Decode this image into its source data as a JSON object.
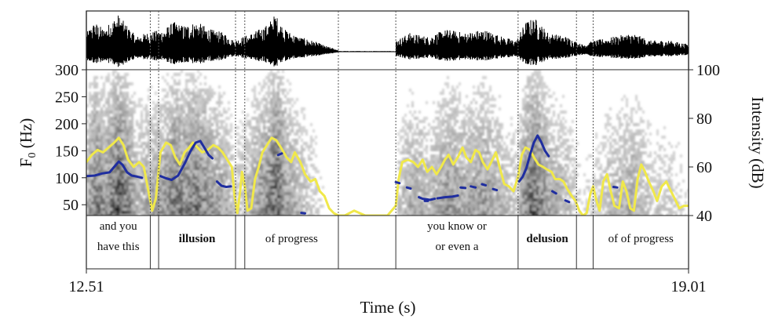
{
  "chart_data": {
    "type": "line",
    "xlabel": "Time (s)",
    "ylabel_left": "F0 (Hz)",
    "ylabel_right": "Intensity (dB)",
    "x_range": [
      12.51,
      19.01
    ],
    "x_ticks": [
      "12.51",
      "19.01"
    ],
    "y_left_range": [
      30,
      300
    ],
    "y_left_ticks": [
      "300",
      "250",
      "200",
      "150",
      "100",
      "50"
    ],
    "y_right_range": [
      40,
      100
    ],
    "y_right_ticks": [
      "100",
      "80",
      "60",
      "40"
    ],
    "segments": [
      {
        "text": [
          "and you",
          "have this"
        ],
        "bold": false,
        "start": 12.51,
        "end": 13.2
      },
      {
        "text": [
          "illusion"
        ],
        "bold": true,
        "start": 13.29,
        "end": 14.12
      },
      {
        "text": [
          "of progress"
        ],
        "bold": false,
        "start": 14.22,
        "end": 15.23
      },
      {
        "text": [
          "you know or",
          "or even a"
        ],
        "bold": false,
        "start": 15.85,
        "end": 17.17
      },
      {
        "text": [
          "delusion"
        ],
        "bold": true,
        "start": 17.17,
        "end": 17.8
      },
      {
        "text": [
          "of of progress"
        ],
        "bold": false,
        "start": 17.98,
        "end": 19.01
      }
    ],
    "boundaries": [
      13.2,
      13.29,
      14.12,
      14.22,
      15.23,
      15.85,
      17.17,
      17.8,
      17.98
    ],
    "series": [
      {
        "name": "Intensity",
        "axis": "right",
        "color": "#f0e84a",
        "points": [
          [
            12.51,
            62
          ],
          [
            12.57,
            65
          ],
          [
            12.63,
            67
          ],
          [
            12.69,
            66
          ],
          [
            12.75,
            68
          ],
          [
            12.81,
            70
          ],
          [
            12.86,
            72
          ],
          [
            12.91,
            69
          ],
          [
            12.96,
            63
          ],
          [
            13.02,
            60
          ],
          [
            13.08,
            62
          ],
          [
            13.13,
            60
          ],
          [
            13.18,
            50
          ],
          [
            13.22,
            42
          ],
          [
            13.26,
            47
          ],
          [
            13.31,
            66
          ],
          [
            13.37,
            70
          ],
          [
            13.42,
            69
          ],
          [
            13.47,
            64
          ],
          [
            13.52,
            61
          ],
          [
            13.57,
            66
          ],
          [
            13.62,
            68
          ],
          [
            13.66,
            70
          ],
          [
            13.71,
            68
          ],
          [
            13.76,
            66
          ],
          [
            13.82,
            67
          ],
          [
            13.88,
            69
          ],
          [
            13.93,
            68
          ],
          [
            13.98,
            66
          ],
          [
            14.03,
            63
          ],
          [
            14.08,
            60
          ],
          [
            14.11,
            48
          ],
          [
            14.14,
            41
          ],
          [
            14.17,
            50
          ],
          [
            14.19,
            58
          ],
          [
            14.22,
            52
          ],
          [
            14.25,
            42
          ],
          [
            14.29,
            43
          ],
          [
            14.33,
            55
          ],
          [
            14.37,
            60
          ],
          [
            14.41,
            66
          ],
          [
            14.46,
            69
          ],
          [
            14.51,
            72
          ],
          [
            14.56,
            71
          ],
          [
            14.61,
            68
          ],
          [
            14.67,
            64
          ],
          [
            14.72,
            62
          ],
          [
            14.76,
            66
          ],
          [
            14.82,
            62
          ],
          [
            14.87,
            57
          ],
          [
            14.93,
            54
          ],
          [
            14.98,
            55
          ],
          [
            15.03,
            50
          ],
          [
            15.08,
            48
          ],
          [
            15.13,
            43
          ],
          [
            15.18,
            41
          ],
          [
            15.23,
            40
          ],
          [
            15.3,
            40
          ],
          [
            15.4,
            42
          ],
          [
            15.52,
            40
          ],
          [
            15.64,
            40
          ],
          [
            15.76,
            40
          ],
          [
            15.85,
            44
          ],
          [
            15.88,
            55
          ],
          [
            15.92,
            62
          ],
          [
            15.98,
            63
          ],
          [
            16.04,
            62
          ],
          [
            16.09,
            60
          ],
          [
            16.14,
            63
          ],
          [
            16.19,
            58
          ],
          [
            16.24,
            60
          ],
          [
            16.29,
            57
          ],
          [
            16.34,
            60
          ],
          [
            16.38,
            63
          ],
          [
            16.42,
            65
          ],
          [
            16.47,
            61
          ],
          [
            16.52,
            64
          ],
          [
            16.57,
            68
          ],
          [
            16.61,
            64
          ],
          [
            16.66,
            62
          ],
          [
            16.71,
            67
          ],
          [
            16.75,
            66
          ],
          [
            16.79,
            62
          ],
          [
            16.84,
            59
          ],
          [
            16.88,
            62
          ],
          [
            16.93,
            66
          ],
          [
            16.97,
            60
          ],
          [
            17.02,
            53
          ],
          [
            17.07,
            52
          ],
          [
            17.12,
            50
          ],
          [
            17.17,
            56
          ],
          [
            17.21,
            65
          ],
          [
            17.25,
            68
          ],
          [
            17.3,
            67
          ],
          [
            17.34,
            64
          ],
          [
            17.39,
            61
          ],
          [
            17.44,
            60
          ],
          [
            17.48,
            59
          ],
          [
            17.53,
            58
          ],
          [
            17.57,
            55
          ],
          [
            17.62,
            55
          ],
          [
            17.66,
            54
          ],
          [
            17.7,
            51
          ],
          [
            17.75,
            48
          ],
          [
            17.79,
            46
          ],
          [
            17.83,
            42
          ],
          [
            17.87,
            40
          ],
          [
            17.91,
            41
          ],
          [
            17.95,
            49
          ],
          [
            17.98,
            52
          ],
          [
            18.01,
            47
          ],
          [
            18.05,
            42
          ],
          [
            18.09,
            54
          ],
          [
            18.13,
            57
          ],
          [
            18.17,
            50
          ],
          [
            18.21,
            44
          ],
          [
            18.26,
            43
          ],
          [
            18.3,
            54
          ],
          [
            18.34,
            50
          ],
          [
            18.38,
            43
          ],
          [
            18.42,
            42
          ],
          [
            18.46,
            55
          ],
          [
            18.5,
            61
          ],
          [
            18.54,
            58
          ],
          [
            18.58,
            54
          ],
          [
            18.63,
            50
          ],
          [
            18.67,
            46
          ],
          [
            18.72,
            52
          ],
          [
            18.77,
            54
          ],
          [
            18.82,
            50
          ],
          [
            18.86,
            47
          ],
          [
            18.91,
            43
          ],
          [
            18.96,
            44
          ],
          [
            19.01,
            44
          ]
        ]
      },
      {
        "name": "F0",
        "axis": "left",
        "color": "#1f2ea0",
        "segments": [
          [
            [
              12.51,
              103
            ],
            [
              12.6,
              104
            ],
            [
              12.68,
              108
            ],
            [
              12.76,
              110
            ],
            [
              12.82,
              122
            ],
            [
              12.86,
              130
            ],
            [
              12.9,
              124
            ],
            [
              12.95,
              110
            ],
            [
              13.0,
              104
            ],
            [
              13.06,
              102
            ],
            [
              13.11,
              100
            ]
          ],
          [
            [
              13.31,
              103
            ],
            [
              13.37,
              99
            ],
            [
              13.43,
              96
            ],
            [
              13.5,
              104
            ],
            [
              13.57,
              126
            ],
            [
              13.63,
              148
            ],
            [
              13.69,
              165
            ],
            [
              13.74,
              168
            ],
            [
              13.79,
              154
            ],
            [
              13.83,
              142
            ],
            [
              13.87,
              136
            ]
          ],
          [
            [
              13.92,
              93
            ],
            [
              13.97,
              85
            ],
            [
              14.02,
              83
            ],
            [
              14.07,
              84
            ]
          ],
          [
            [
              14.58,
              142
            ],
            [
              14.62,
              145
            ]
          ],
          [
            [
              14.83,
              35
            ],
            [
              14.87,
              34
            ]
          ],
          [
            [
              15.85,
              92
            ],
            [
              15.89,
              90
            ]
          ],
          [
            [
              15.97,
              82
            ],
            [
              16.01,
              80
            ]
          ],
          [
            [
              16.1,
              64
            ],
            [
              16.14,
              61
            ],
            [
              16.22,
              59
            ],
            [
              16.27,
              61
            ]
          ],
          [
            [
              16.18,
              57
            ]
          ],
          [
            [
              16.3,
              62
            ],
            [
              16.38,
              64
            ],
            [
              16.46,
              65
            ],
            [
              16.52,
              67
            ]
          ],
          [
            [
              16.55,
              82
            ],
            [
              16.6,
              81
            ]
          ],
          [
            [
              16.66,
              84
            ],
            [
              16.71,
              82
            ]
          ],
          [
            [
              16.78,
              88
            ],
            [
              16.82,
              86
            ]
          ],
          [
            [
              16.9,
              79
            ],
            [
              16.94,
              77
            ]
          ],
          [
            [
              17.18,
              93
            ],
            [
              17.22,
              102
            ],
            [
              17.26,
              118
            ],
            [
              17.3,
              143
            ],
            [
              17.34,
              165
            ],
            [
              17.38,
              178
            ],
            [
              17.42,
              166
            ],
            [
              17.46,
              150
            ],
            [
              17.5,
              140
            ]
          ],
          [
            [
              17.54,
              75
            ],
            [
              17.58,
              71
            ]
          ],
          [
            [
              17.68,
              58
            ],
            [
              17.72,
              55
            ]
          ],
          [
            [
              18.2,
              83
            ],
            [
              18.24,
              82
            ]
          ]
        ]
      }
    ]
  }
}
